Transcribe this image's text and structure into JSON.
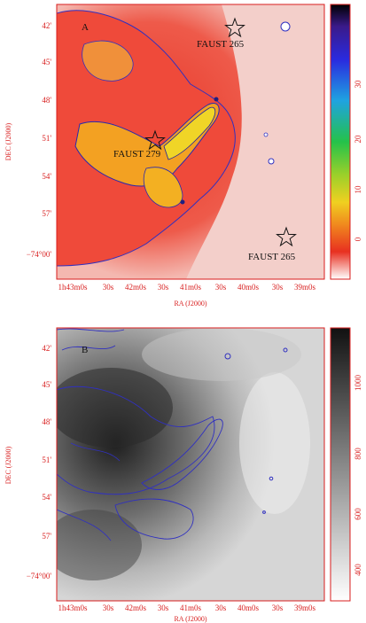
{
  "panel_a": {
    "letter": "A",
    "sources": [
      {
        "name": "FAUST 265"
      },
      {
        "name": "FAUST 279"
      },
      {
        "name": "FAUST 265"
      }
    ],
    "xlabel": "RA (J2000)",
    "ylabel": "DEC (J2000)",
    "x_ticks": [
      "1h43m0s",
      "30s",
      "42m0s",
      "30s",
      "41m0s",
      "30s",
      "40m0s",
      "30s",
      "39m0s"
    ],
    "y_ticks": [
      "42'",
      "45'",
      "48'",
      "51'",
      "54'",
      "57'",
      "−74°00'"
    ],
    "colorbar_ticks": [
      "30",
      "20",
      "10",
      "0"
    ]
  },
  "panel_b": {
    "letter": "B",
    "xlabel": "RA (J2000)",
    "ylabel": "DEC (J2000)",
    "x_ticks": [
      "1h43m0s",
      "30s",
      "42m0s",
      "30s",
      "41m0s",
      "30s",
      "40m0s",
      "30s",
      "39m0s"
    ],
    "y_ticks": [
      "42'",
      "45'",
      "48'",
      "51'",
      "54'",
      "57'",
      "−74°00'"
    ],
    "colorbar_ticks": [
      "1000",
      "800",
      "600",
      "400"
    ]
  }
}
